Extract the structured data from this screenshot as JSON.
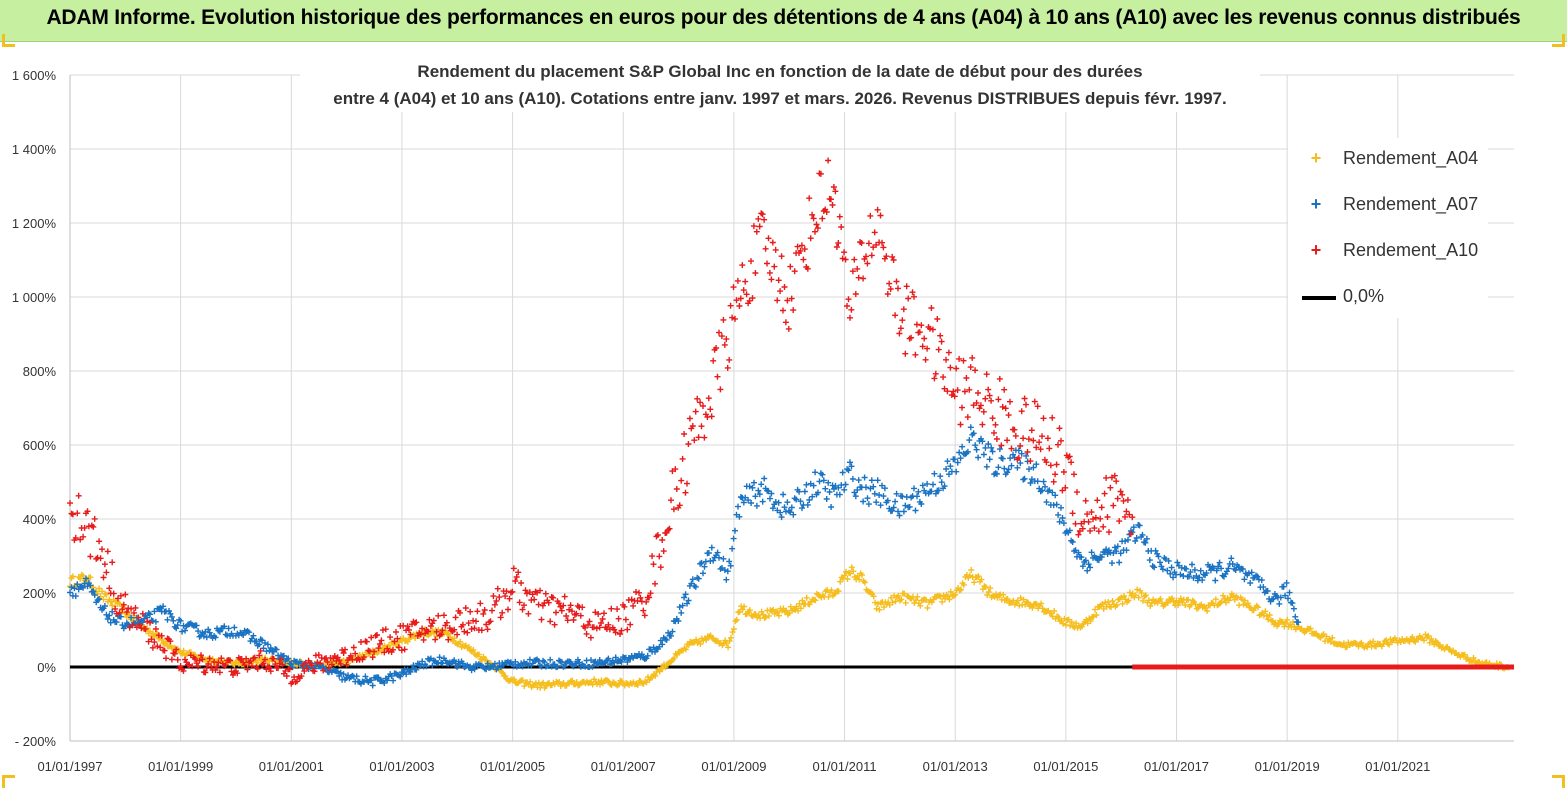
{
  "banner": {
    "title": "ADAM Informe. Evolution historique des performances en euros pour des détentions de 4 ans (A04) à 10 ans (A10) avec les revenus connus distribués"
  },
  "colors": {
    "banner_bg": "#c6efa0",
    "a04": "#f5be1e",
    "a07": "#1a72c2",
    "a10": "#e81b1b",
    "zero": "#000000",
    "grid": "#d9d9d9"
  },
  "legend": {
    "items": [
      {
        "marker": "+",
        "label": "Rendement_A04",
        "color": "#f5be1e"
      },
      {
        "marker": "+",
        "label": "Rendement_A07",
        "color": "#1a72c2"
      },
      {
        "marker": "+",
        "label": "Rendement_A10",
        "color": "#e81b1b"
      },
      {
        "marker": "line",
        "label": "0,0%",
        "color": "#000000"
      }
    ]
  },
  "chart_data": {
    "type": "scatter",
    "title": "Rendement du placement S&P Global Inc en fonction de la date de début pour des durées",
    "subtitle": "entre 4 (A04) et 10 ans (A10). Cotations entre janv. 1997 et mars. 2026. Revenus DISTRIBUES depuis févr. 1997.",
    "legend_position": "right",
    "grid": true,
    "xlim": [
      1997.0,
      2023.1
    ],
    "ylim": [
      -200,
      1600
    ],
    "x_ticks": [
      1997,
      1999,
      2001,
      2003,
      2005,
      2007,
      2009,
      2011,
      2013,
      2015,
      2017,
      2019,
      2021
    ],
    "x_tick_labels": [
      "01/01/1997",
      "01/01/1999",
      "01/01/2001",
      "01/01/2003",
      "01/01/2005",
      "01/01/2007",
      "01/01/2009",
      "01/01/2011",
      "01/01/2013",
      "01/01/2015",
      "01/01/2017",
      "01/01/2019",
      "01/01/2021"
    ],
    "y_ticks": [
      -200,
      0,
      200,
      400,
      600,
      800,
      1000,
      1200,
      1400,
      1600
    ],
    "y_tick_labels": [
      "- 200%",
      "0%",
      "200%",
      "400%",
      "600%",
      "800%",
      "1 000%",
      "1 200%",
      "1 400%",
      "1 600%"
    ],
    "series": [
      {
        "name": "Rendement_A04",
        "x": [
          1997.0,
          1997.3,
          1997.6,
          1997.9,
          1998.3,
          1998.7,
          1999.0,
          1999.5,
          2000.0,
          2000.5,
          2001.0,
          2001.5,
          2002.0,
          2002.5,
          2003.0,
          2003.4,
          2003.8,
          2004.2,
          2004.6,
          2005.0,
          2005.5,
          2006.0,
          2006.5,
          2007.0,
          2007.4,
          2007.8,
          2008.2,
          2008.6,
          2008.9,
          2009.1,
          2009.5,
          2010.0,
          2010.5,
          2010.8,
          2011.1,
          2011.3,
          2011.6,
          2012.0,
          2012.5,
          2013.0,
          2013.3,
          2013.7,
          2014.0,
          2014.5,
          2015.0,
          2015.3,
          2015.6,
          2016.0,
          2016.3,
          2016.6,
          2017.0,
          2017.5,
          2018.0,
          2018.5,
          2018.8,
          2019.0,
          2019.5,
          2020.0,
          2020.5,
          2021.0,
          2021.5,
          2022.0,
          2022.5,
          2023.0
        ],
        "y": [
          230,
          240,
          190,
          160,
          110,
          70,
          40,
          20,
          10,
          20,
          10,
          5,
          15,
          40,
          70,
          95,
          90,
          50,
          10,
          -40,
          -50,
          -45,
          -40,
          -45,
          -40,
          10,
          60,
          80,
          60,
          160,
          140,
          150,
          190,
          200,
          260,
          240,
          160,
          190,
          170,
          200,
          250,
          190,
          180,
          170,
          120,
          110,
          160,
          180,
          200,
          170,
          180,
          160,
          190,
          150,
          120,
          120,
          90,
          60,
          60,
          70,
          80,
          40,
          10,
          0
        ]
      },
      {
        "name": "Rendement_A07",
        "x": [
          1997.0,
          1997.3,
          1997.6,
          1997.9,
          1998.3,
          1998.7,
          1999.0,
          1999.5,
          2000.0,
          2000.5,
          2001.0,
          2001.5,
          2002.0,
          2002.5,
          2003.0,
          2003.4,
          2003.8,
          2004.2,
          2004.6,
          2005.0,
          2005.5,
          2006.0,
          2006.5,
          2007.0,
          2007.4,
          2007.8,
          2008.2,
          2008.6,
          2008.9,
          2009.1,
          2009.5,
          2010.0,
          2010.5,
          2010.8,
          2011.1,
          2011.3,
          2011.6,
          2012.0,
          2012.5,
          2013.0,
          2013.3,
          2013.7,
          2014.0,
          2014.5,
          2015.0,
          2015.3,
          2015.6,
          2016.0,
          2016.3,
          2016.6,
          2017.0,
          2017.5,
          2018.0,
          2018.5,
          2018.8,
          2019.0,
          2019.2
        ],
        "y": [
          210,
          220,
          150,
          120,
          120,
          150,
          110,
          90,
          100,
          60,
          10,
          0,
          -30,
          -40,
          -20,
          10,
          20,
          0,
          0,
          10,
          10,
          10,
          10,
          20,
          30,
          80,
          200,
          320,
          250,
          440,
          480,
          420,
          500,
          460,
          520,
          480,
          470,
          430,
          480,
          540,
          620,
          550,
          560,
          520,
          380,
          280,
          300,
          310,
          370,
          290,
          260,
          250,
          270,
          220,
          180,
          210,
          120
        ]
      },
      {
        "name": "Rendement_A10",
        "x": [
          1997.0,
          1997.3,
          1997.6,
          1997.9,
          1998.3,
          1998.7,
          1999.0,
          1999.5,
          2000.0,
          2000.5,
          2001.0,
          2001.5,
          2002.0,
          2002.5,
          2003.0,
          2003.4,
          2003.8,
          2004.2,
          2004.6,
          2005.0,
          2005.5,
          2006.0,
          2006.5,
          2007.0,
          2007.4,
          2007.8,
          2008.2,
          2008.6,
          2008.9,
          2009.1,
          2009.5,
          2010.0,
          2010.5,
          2010.8,
          2011.1,
          2011.3,
          2011.6,
          2012.0,
          2012.5,
          2013.0,
          2013.3,
          2013.7,
          2014.0,
          2014.5,
          2015.0,
          2015.3,
          2015.6,
          2016.0,
          2016.2
        ],
        "y": [
          440,
          380,
          300,
          170,
          110,
          60,
          10,
          10,
          0,
          20,
          -20,
          10,
          30,
          60,
          80,
          100,
          110,
          130,
          140,
          220,
          160,
          150,
          110,
          130,
          190,
          400,
          600,
          750,
          900,
          1000,
          1150,
          1000,
          1250,
          1300,
          950,
          1100,
          1200,
          950,
          900,
          750,
          750,
          700,
          660,
          620,
          550,
          400,
          420,
          470,
          380
        ]
      },
      {
        "name": "0,0%",
        "x": [
          1997.0,
          2023.1
        ],
        "y": [
          0,
          0
        ]
      }
    ]
  }
}
